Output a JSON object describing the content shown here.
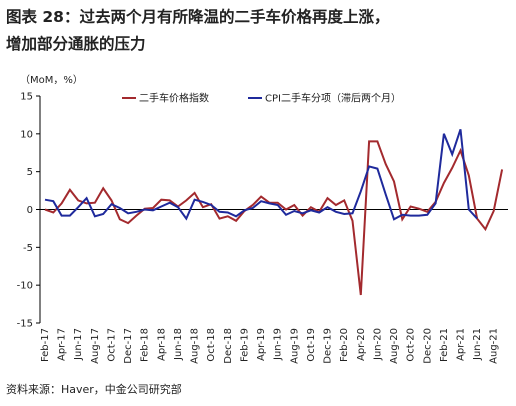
{
  "chart_data": {
    "type": "line",
    "title": [
      "图表 28：过去两个月有所降温的二手车价格再度上涨，",
      "增加部分通胀的压力"
    ],
    "y_axis_label": "（MoM，%）",
    "source": "资料来源：Haver，中金公司研究部",
    "categories": [
      "Feb-17",
      null,
      "Apr-17",
      null,
      "Jun-17",
      null,
      "Aug-17",
      null,
      "Oct-17",
      null,
      "Dec-17",
      null,
      "Feb-18",
      null,
      "Apr-18",
      null,
      "Jun-18",
      null,
      "Aug-18",
      null,
      "Oct-18",
      null,
      "Dec-18",
      null,
      "Feb-19",
      null,
      "Apr-19",
      null,
      "Jun-19",
      null,
      "Aug-19",
      null,
      "Oct-19",
      null,
      "Dec-19",
      null,
      "Feb-20",
      null,
      "Apr-20",
      null,
      "Jun-20",
      null,
      "Aug-20",
      null,
      "Oct-20",
      null,
      "Dec-20",
      null,
      "Feb-21",
      null,
      "Apr-21",
      null,
      "Jun-21",
      null,
      "Aug-21",
      null
    ],
    "series": [
      {
        "name": "二手车价格指数",
        "color": "#a32a2e",
        "values": [
          0,
          -0.4,
          0.8,
          2.6,
          1.2,
          0.8,
          0.9,
          2.8,
          1.2,
          -1.3,
          -1.8,
          -0.8,
          0.1,
          0.2,
          1.3,
          1.2,
          0.4,
          1.2,
          2.2,
          0.3,
          0.7,
          -1.2,
          -0.9,
          -1.5,
          -0.2,
          0.6,
          1.7,
          0.9,
          0.9,
          0,
          0.6,
          -0.8,
          0.3,
          -0.3,
          1.5,
          0.6,
          1.2,
          -1.5,
          -11.3,
          9.0,
          9.0,
          6.0,
          3.7,
          -1.3,
          0.4,
          0.1,
          -0.3,
          1.0,
          3.5,
          5.5,
          7.8,
          4.5,
          -1.2,
          -2.6,
          -0.2,
          5.3
        ]
      },
      {
        "name": "CPI二手车分项（滞后两个月）",
        "color": "#1f2a9c",
        "values": [
          1.3,
          1.1,
          -0.8,
          -0.8,
          0.3,
          1.5,
          -0.9,
          -0.6,
          0.7,
          0.2,
          -0.5,
          -0.3,
          0,
          -0.1,
          0.4,
          0.9,
          0.3,
          -1.2,
          1.3,
          1.0,
          0.6,
          -0.3,
          -0.4,
          -0.9,
          -0.1,
          0.2,
          1.1,
          0.8,
          0.6,
          -0.7,
          -0.2,
          -0.5,
          -0.1,
          -0.4,
          0.3,
          -0.3,
          -0.6,
          -0.5,
          2.4,
          5.7,
          5.4,
          2.0,
          -1.3,
          -0.7,
          -0.8,
          -0.8,
          -0.7,
          0.8,
          10.0,
          7.3,
          10.6,
          0,
          -1.2,
          null,
          null,
          null
        ]
      }
    ],
    "ylim": [
      -15,
      15
    ],
    "yticks": [
      15,
      10,
      5,
      0,
      -5,
      -10,
      -15
    ],
    "legend": "top"
  }
}
